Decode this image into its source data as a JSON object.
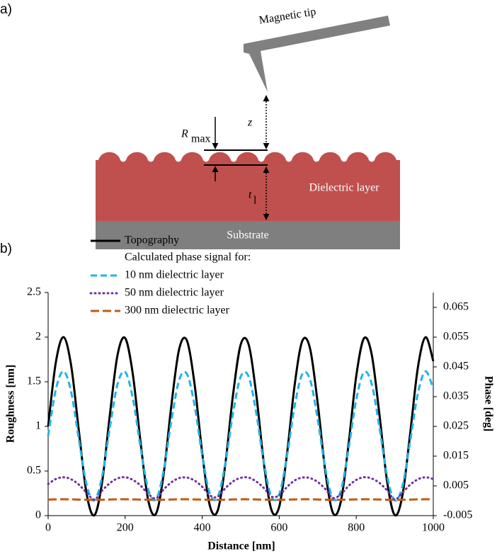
{
  "diagram": {
    "panel_a": "a)",
    "panel_b": "b)",
    "tip_label": "Magnetic tip",
    "z_label": "z",
    "rmax_label": "R",
    "rmax_sub": "max",
    "t_label": "t",
    "t_sub": "l",
    "dielectric_label": "Dielectric layer",
    "substrate_label": "Substrate"
  },
  "chart_data": {
    "type": "line",
    "xlabel": "Distance [nm]",
    "ylabel": "Roughness [nm]",
    "y2label": "Phase [deg]",
    "legend_subtitle": "Calculated phase signal for:",
    "x": [
      0,
      20,
      40,
      60,
      80,
      100,
      120,
      140,
      160,
      180,
      200,
      220,
      240,
      260,
      280,
      300,
      320,
      340,
      360,
      380,
      400,
      420,
      440,
      460,
      480,
      500,
      520,
      540,
      560,
      580,
      600,
      620,
      640,
      660,
      680,
      700,
      720,
      740,
      760,
      780,
      800,
      820,
      840,
      860,
      880,
      900,
      920,
      940,
      960,
      980,
      1000
    ],
    "xlim": [
      0,
      1000
    ],
    "xticks": [
      0,
      200,
      400,
      600,
      800,
      1000
    ],
    "ylim": [
      0,
      2.5
    ],
    "yticks": [
      0,
      0.5,
      1,
      1.5,
      2,
      2.5
    ],
    "y2lim": [
      -0.005,
      0.07
    ],
    "y2ticks": [
      -0.005,
      0.005,
      0.015,
      0.025,
      0.035,
      0.045,
      0.055,
      0.065
    ],
    "grid": false,
    "series": [
      {
        "name": "Topography",
        "color": "#000000",
        "style": "solid",
        "axis": "y",
        "values": [
          1,
          1.718,
          2.0,
          1.675,
          0.94,
          0.242,
          0.004,
          0.371,
          1.12,
          1.796,
          1.989,
          1.581,
          0.821,
          0.169,
          0.022,
          0.469,
          1.238,
          1.863,
          1.964,
          1.48,
          0.704,
          0.109,
          0.054,
          0.574,
          1.353,
          1.917,
          1.925,
          1.371,
          0.592,
          0.061,
          0.1,
          0.685,
          1.462,
          1.958,
          1.873,
          1.257,
          0.486,
          0.026,
          0.158,
          0.801,
          1.565,
          1.986,
          1.808,
          1.14,
          0.387,
          0.006,
          0.229,
          0.92,
          1.66,
          1.999,
          1.731
        ]
      },
      {
        "name": "10 nm dielectric layer",
        "color": "#1fb4e8",
        "style": "dashed",
        "axis": "y2",
        "values": [
          0.0218,
          0.0374,
          0.0435,
          0.0364,
          0.0204,
          0.0053,
          0.0001,
          0.0081,
          0.0244,
          0.0391,
          0.0433,
          0.0344,
          0.0179,
          0.0037,
          0.0005,
          0.0102,
          0.0269,
          0.0405,
          0.0427,
          0.0322,
          0.0153,
          0.0024,
          0.0012,
          0.0125,
          0.0294,
          0.0417,
          0.0419,
          0.0298,
          0.0129,
          0.0013,
          0.0022,
          0.0149,
          0.0318,
          0.0426,
          0.0407,
          0.0273,
          0.0106,
          0.0006,
          0.0034,
          0.0174,
          0.034,
          0.0432,
          0.0393,
          0.0248,
          0.0084,
          0.0001,
          0.005,
          0.02,
          0.0361,
          0.0435,
          0.0376
        ]
      },
      {
        "name": "50 nm dielectric layer",
        "color": "#7030a0",
        "style": "dotted",
        "axis": "y2",
        "values": [
          0.0056,
          0.0073,
          0.0079,
          0.0072,
          0.0054,
          0.0027,
          0.0004,
          0.0034,
          0.0059,
          0.0075,
          0.0079,
          0.007,
          0.0051,
          0.0023,
          0.0008,
          0.0038,
          0.0062,
          0.0076,
          0.0078,
          0.0068,
          0.0047,
          0.0018,
          0.0013,
          0.0042,
          0.0065,
          0.0077,
          0.0078,
          0.0065,
          0.0043,
          0.0014,
          0.0018,
          0.0046,
          0.0068,
          0.0078,
          0.0076,
          0.0063,
          0.0039,
          0.0009,
          0.0022,
          0.005,
          0.007,
          0.0079,
          0.0075,
          0.006,
          0.0035,
          0.0004,
          0.0027,
          0.0054,
          0.0072,
          0.0079,
          0.0073
        ]
      },
      {
        "name": "300 nm dielectric layer",
        "color": "#c55a11",
        "style": "longdash",
        "axis": "y2",
        "values": [
          0.0004,
          0.00047,
          0.0005,
          0.00047,
          0.00039,
          0.00032,
          0.0003,
          0.00034,
          0.00041,
          0.00048,
          0.0005,
          0.00046,
          0.00038,
          0.00032,
          0.0003,
          0.00035,
          0.00042,
          0.00049,
          0.0005,
          0.00045,
          0.00037,
          0.00031,
          0.00031,
          0.00036,
          0.00044,
          0.00049,
          0.00049,
          0.00044,
          0.00036,
          0.00031,
          0.00031,
          0.00037,
          0.00045,
          0.0005,
          0.00049,
          0.00043,
          0.00035,
          0.0003,
          0.00032,
          0.00038,
          0.00046,
          0.0005,
          0.00048,
          0.00041,
          0.00034,
          0.0003,
          0.00032,
          0.00039,
          0.00047,
          0.0005,
          0.00047
        ]
      }
    ]
  }
}
